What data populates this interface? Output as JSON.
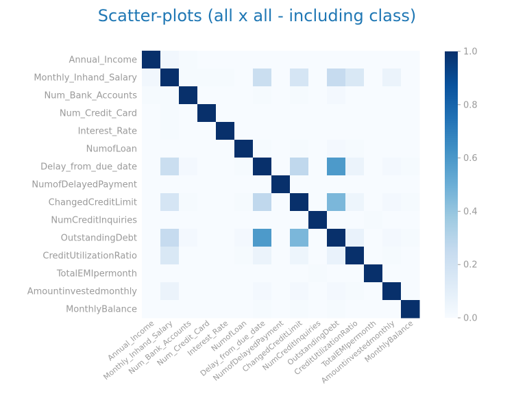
{
  "chart_data": {
    "type": "heatmap",
    "title": "Scatter-plots (all x all - including class)",
    "labels": [
      "Annual_Income",
      "Monthly_Inhand_Salary",
      "Num_Bank_Accounts",
      "Num_Credit_Card",
      "Interest_Rate",
      "NumofLoan",
      "Delay_from_due_date",
      "NumofDelayedPayment",
      "ChangedCreditLimit",
      "NumCreditInquiries",
      "OutstandingDebt",
      "CreditUtilizationRatio",
      "TotalEMIpermonth",
      "Amountinvestedmonthly",
      "MonthlyBalance"
    ],
    "matrix": [
      [
        1.0,
        0.03,
        0.01,
        0.0,
        0.0,
        0.0,
        0.0,
        0.0,
        0.0,
        0.0,
        0.0,
        0.0,
        0.0,
        0.0,
        0.0
      ],
      [
        0.03,
        1.0,
        0.01,
        0.01,
        0.01,
        0.0,
        0.23,
        0.0,
        0.17,
        0.0,
        0.25,
        0.15,
        0.0,
        0.06,
        0.0
      ],
      [
        0.01,
        0.01,
        1.0,
        0.0,
        0.0,
        0.0,
        0.01,
        0.0,
        0.01,
        0.0,
        0.02,
        0.0,
        0.0,
        0.0,
        0.0
      ],
      [
        0.0,
        0.01,
        0.0,
        1.0,
        0.0,
        0.0,
        0.0,
        0.0,
        0.0,
        0.0,
        0.0,
        0.0,
        0.0,
        0.0,
        0.0
      ],
      [
        0.0,
        0.01,
        0.0,
        0.0,
        1.0,
        0.0,
        0.0,
        0.0,
        0.0,
        0.0,
        0.0,
        0.0,
        0.0,
        0.0,
        0.0
      ],
      [
        0.0,
        0.0,
        0.0,
        0.0,
        0.0,
        1.0,
        0.01,
        0.0,
        0.01,
        0.0,
        0.02,
        0.01,
        0.0,
        0.0,
        0.0
      ],
      [
        0.0,
        0.23,
        0.02,
        0.0,
        0.0,
        0.01,
        1.0,
        0.0,
        0.27,
        0.0,
        0.59,
        0.06,
        0.0,
        0.02,
        0.01
      ],
      [
        0.0,
        0.0,
        0.0,
        0.0,
        0.0,
        0.0,
        0.0,
        1.0,
        0.0,
        0.0,
        0.0,
        0.0,
        0.0,
        0.0,
        0.0
      ],
      [
        0.0,
        0.17,
        0.01,
        0.0,
        0.0,
        0.01,
        0.27,
        0.0,
        1.0,
        0.0,
        0.46,
        0.05,
        0.0,
        0.02,
        0.01
      ],
      [
        0.0,
        0.0,
        0.0,
        0.0,
        0.0,
        0.0,
        0.0,
        0.0,
        0.0,
        1.0,
        0.0,
        0.0,
        0.01,
        0.0,
        0.0
      ],
      [
        0.0,
        0.25,
        0.02,
        0.0,
        0.0,
        0.02,
        0.59,
        0.0,
        0.46,
        0.0,
        1.0,
        0.07,
        0.0,
        0.02,
        0.01
      ],
      [
        0.0,
        0.15,
        0.0,
        0.0,
        0.0,
        0.01,
        0.06,
        0.0,
        0.05,
        0.0,
        0.07,
        1.0,
        0.0,
        0.01,
        0.0
      ],
      [
        0.0,
        0.0,
        0.0,
        0.0,
        0.0,
        0.0,
        0.0,
        0.0,
        0.0,
        0.01,
        0.0,
        0.0,
        1.0,
        0.0,
        0.0
      ],
      [
        0.0,
        0.06,
        0.0,
        0.0,
        0.0,
        0.0,
        0.02,
        0.0,
        0.02,
        0.0,
        0.02,
        0.01,
        0.0,
        1.0,
        0.0
      ],
      [
        0.0,
        0.0,
        0.0,
        0.0,
        0.0,
        0.0,
        0.01,
        0.0,
        0.01,
        0.0,
        0.01,
        0.0,
        0.0,
        0.0,
        1.0
      ]
    ],
    "colorbar": {
      "min": 0.0,
      "max": 1.0,
      "ticks": [
        "0.0",
        "0.2",
        "0.4",
        "0.6",
        "0.8",
        "1.0"
      ],
      "colormap": "Blues",
      "low_color": "#f7fbff",
      "high_color": "#08306b"
    },
    "grid": false,
    "legend": "colorbar-right"
  }
}
